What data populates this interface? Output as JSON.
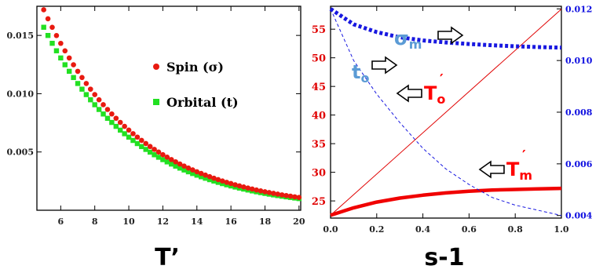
{
  "chart_data": [
    {
      "type": "scatter",
      "xlabel": "T’",
      "ylabel": "",
      "xlim": [
        4.6,
        20.1
      ],
      "ylim": [
        0.0,
        0.0175
      ],
      "x_ticks": [
        "6",
        "8",
        "10",
        "12",
        "14",
        "16",
        "18",
        "20"
      ],
      "y_ticks": [
        "0.005",
        "0.010",
        "0.015"
      ],
      "legend_position": "center-right",
      "series": [
        {
          "name": "Spin (σ)",
          "color": "#e81a10",
          "marker": "circle",
          "x_start": 5.0,
          "x_end": 20.0,
          "x_step": 0.25,
          "y_at_5": 0.0172,
          "y_at_20": 0.0011
        },
        {
          "name": "Orbital (t)",
          "color": "#22e022",
          "marker": "square",
          "x_start": 5.0,
          "x_end": 20.0,
          "x_step": 0.25,
          "y_at_5": 0.0157,
          "y_at_20": 0.001
        }
      ]
    },
    {
      "type": "line",
      "xlabel": "s-1",
      "xlim": [
        0.0,
        1.0
      ],
      "y_left_lim": [
        22,
        59
      ],
      "y_right_lim": [
        0.0039,
        0.0121
      ],
      "x_ticks": [
        "0.0",
        "0.2",
        "0.4",
        "0.6",
        "0.8",
        "1.0"
      ],
      "y_left_ticks": [
        "25",
        "30",
        "35",
        "40",
        "45",
        "50",
        "55"
      ],
      "y_right_ticks": [
        "0.004",
        "0.006",
        "0.008",
        "0.010",
        "0.012"
      ],
      "series": [
        {
          "name": "T’o",
          "axis": "left",
          "color": "#e00000",
          "style": "thin",
          "x": [
            0.0,
            1.0
          ],
          "y": [
            22.5,
            58.5
          ]
        },
        {
          "name": "T’m",
          "axis": "left",
          "color": "#f00000",
          "style": "thick",
          "x": [
            0.0,
            0.1,
            0.2,
            0.3,
            0.4,
            0.5,
            0.6,
            0.7,
            0.8,
            0.9,
            1.0
          ],
          "y": [
            22.5,
            23.8,
            24.8,
            25.5,
            26.0,
            26.4,
            26.7,
            26.9,
            27.0,
            27.1,
            27.2
          ]
        },
        {
          "name": "to",
          "axis": "right",
          "color": "#1818e0",
          "style": "thin-dashed",
          "x": [
            0.0,
            0.1,
            0.2,
            0.3,
            0.4,
            0.5,
            0.6,
            0.7,
            0.8,
            0.9,
            1.0
          ],
          "y": [
            0.012,
            0.01,
            0.0087,
            0.0076,
            0.0066,
            0.0058,
            0.0052,
            0.0047,
            0.0044,
            0.0042,
            0.004
          ]
        },
        {
          "name": "σm",
          "axis": "right",
          "color": "#1818e0",
          "style": "thick-dotted",
          "x": [
            0.0,
            0.1,
            0.2,
            0.3,
            0.4,
            0.5,
            0.6,
            0.7,
            0.8,
            0.9,
            1.0
          ],
          "y": [
            0.012,
            0.0114,
            0.0111,
            0.0109,
            0.01078,
            0.0107,
            0.01064,
            0.01059,
            0.01055,
            0.01052,
            0.0105
          ]
        }
      ],
      "annotations": [
        {
          "base": "σ",
          "sub": "m",
          "prime": false,
          "color": "#5b9bd5",
          "arrow": "right"
        },
        {
          "base": "t",
          "sub": "o",
          "prime": false,
          "color": "#5b9bd5",
          "arrow": "right"
        },
        {
          "base": "T",
          "sub": "o",
          "prime": true,
          "color": "#ff0000",
          "arrow": "left"
        },
        {
          "base": "T",
          "sub": "m",
          "prime": true,
          "color": "#ff0000",
          "arrow": "left"
        }
      ]
    }
  ]
}
